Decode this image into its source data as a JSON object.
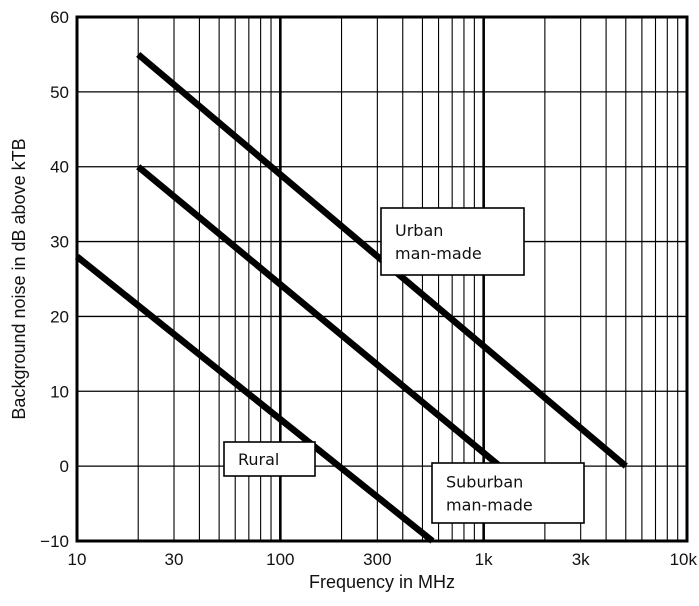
{
  "chart_data": {
    "type": "line",
    "title": "",
    "xlabel": "Frequency in MHz",
    "ylabel": "Background noise in dB above kTB",
    "xscale": "log",
    "xlim": [
      10,
      10000
    ],
    "ylim": [
      -10,
      60
    ],
    "grid": true,
    "legend": "none",
    "xticks": [
      {
        "value": 10,
        "label": "10"
      },
      {
        "value": 30,
        "label": "30"
      },
      {
        "value": 100,
        "label": "100"
      },
      {
        "value": 300,
        "label": "300"
      },
      {
        "value": 1000,
        "label": "1k"
      },
      {
        "value": 3000,
        "label": "3k"
      },
      {
        "value": 10000,
        "label": "10k"
      }
    ],
    "yticks": [
      {
        "value": -10,
        "label": "−10"
      },
      {
        "value": 0,
        "label": "0"
      },
      {
        "value": 10,
        "label": "10"
      },
      {
        "value": 20,
        "label": "20"
      },
      {
        "value": 30,
        "label": "30"
      },
      {
        "value": 40,
        "label": "40"
      },
      {
        "value": 50,
        "label": "50"
      },
      {
        "value": 60,
        "label": "60"
      }
    ],
    "series": [
      {
        "name": "Urban man-made",
        "x": [
          20,
          5000
        ],
        "y": [
          55,
          0
        ]
      },
      {
        "name": "Suburban man-made",
        "x": [
          20,
          1200
        ],
        "y": [
          40,
          0
        ]
      },
      {
        "name": "Rural",
        "x": [
          10,
          560
        ],
        "y": [
          28,
          -10
        ]
      }
    ],
    "annotations": [
      {
        "lines": [
          "Urban",
          "man-made"
        ],
        "series": "Urban man-made"
      },
      {
        "lines": [
          "Suburban",
          "man-made"
        ],
        "series": "Suburban man-made"
      },
      {
        "lines": [
          "Rural"
        ],
        "series": "Rural"
      }
    ]
  }
}
